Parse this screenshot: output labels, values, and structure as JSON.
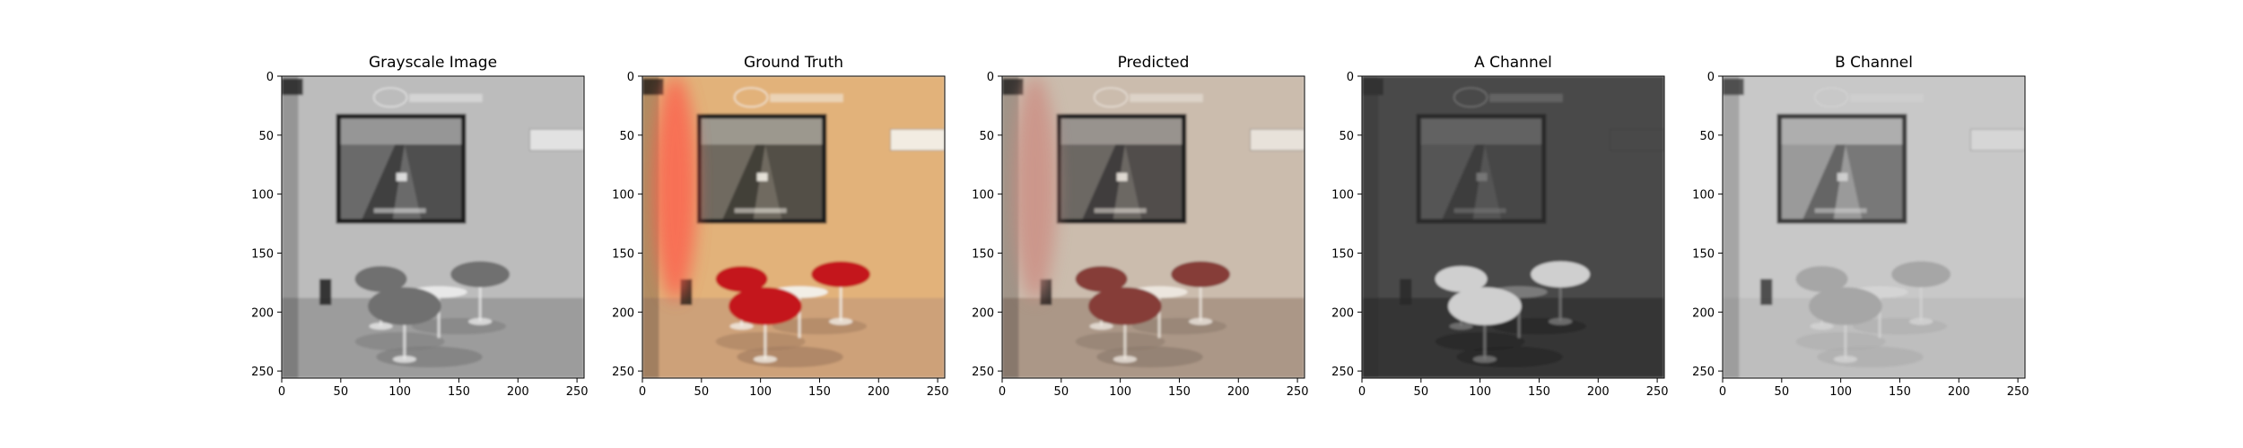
{
  "chart_data": [
    {
      "type": "image",
      "title": "Grayscale Image",
      "xticks": [
        0,
        50,
        100,
        150,
        200,
        250
      ],
      "yticks": [
        0,
        50,
        100,
        150,
        200,
        250
      ],
      "xlim": [
        0,
        256
      ],
      "ylim": [
        256,
        0
      ],
      "colormap": "gray",
      "palette": {
        "wall": "#bcbcbc",
        "floor": "#9c9c9c",
        "chair": "#6f6f6f",
        "frame": "#1e1e1e",
        "screen": "#6a6a6a",
        "table": "#e8e8e8",
        "shadow": "#7c7c7c",
        "ac": "#e2e2e2"
      }
    },
    {
      "type": "image",
      "title": "Ground Truth",
      "xticks": [
        0,
        50,
        100,
        150,
        200,
        250
      ],
      "yticks": [
        0,
        50,
        100,
        150,
        200,
        250
      ],
      "xlim": [
        0,
        256
      ],
      "ylim": [
        256,
        0
      ],
      "colormap": "rgb",
      "palette": {
        "wall": "#e2b27a",
        "floor": "#cda179",
        "chair": "#c4171b",
        "frame": "#1f1c1a",
        "screen": "#6f6a60",
        "table": "#f2eee6",
        "shadow": "#a47e60",
        "ac": "#f2ece2",
        "red_light": "#ff5a4a"
      }
    },
    {
      "type": "image",
      "title": "Predicted",
      "xticks": [
        0,
        50,
        100,
        150,
        200,
        250
      ],
      "yticks": [
        0,
        50,
        100,
        150,
        200,
        250
      ],
      "xlim": [
        0,
        256
      ],
      "ylim": [
        256,
        0
      ],
      "colormap": "rgb",
      "palette": {
        "wall": "#cbbcad",
        "floor": "#ab9787",
        "chair": "#863c38",
        "frame": "#1f1c1c",
        "screen": "#6c6864",
        "table": "#ece6de",
        "shadow": "#8c7a6c",
        "ac": "#e8e2da",
        "red_light": "#cc8a80"
      }
    },
    {
      "type": "image",
      "title": "A Channel",
      "xticks": [
        0,
        50,
        100,
        150,
        200,
        250
      ],
      "yticks": [
        0,
        50,
        100,
        150,
        200,
        250
      ],
      "xlim": [
        0,
        256
      ],
      "ylim": [
        256,
        0
      ],
      "colormap": "gray",
      "palette": {
        "wall": "#484848",
        "floor": "#343434",
        "chair": "#cfcfcf",
        "frame": "#2c2c2c",
        "screen": "#555555",
        "table": "#7a7a7a",
        "shadow": "#262626",
        "ac": "#4a4a4a"
      }
    },
    {
      "type": "image",
      "title": "B Channel",
      "xticks": [
        0,
        50,
        100,
        150,
        200,
        250
      ],
      "yticks": [
        0,
        50,
        100,
        150,
        200,
        250
      ],
      "xlim": [
        0,
        256
      ],
      "ylim": [
        256,
        0
      ],
      "colormap": "gray",
      "palette": {
        "wall": "#c8c8c8",
        "floor": "#bebebe",
        "chair": "#a6a6a6",
        "frame": "#3a3a3a",
        "screen": "#9a9a9a",
        "table": "#d4d4d4",
        "shadow": "#acacac",
        "ac": "#d6d6d6"
      }
    }
  ]
}
